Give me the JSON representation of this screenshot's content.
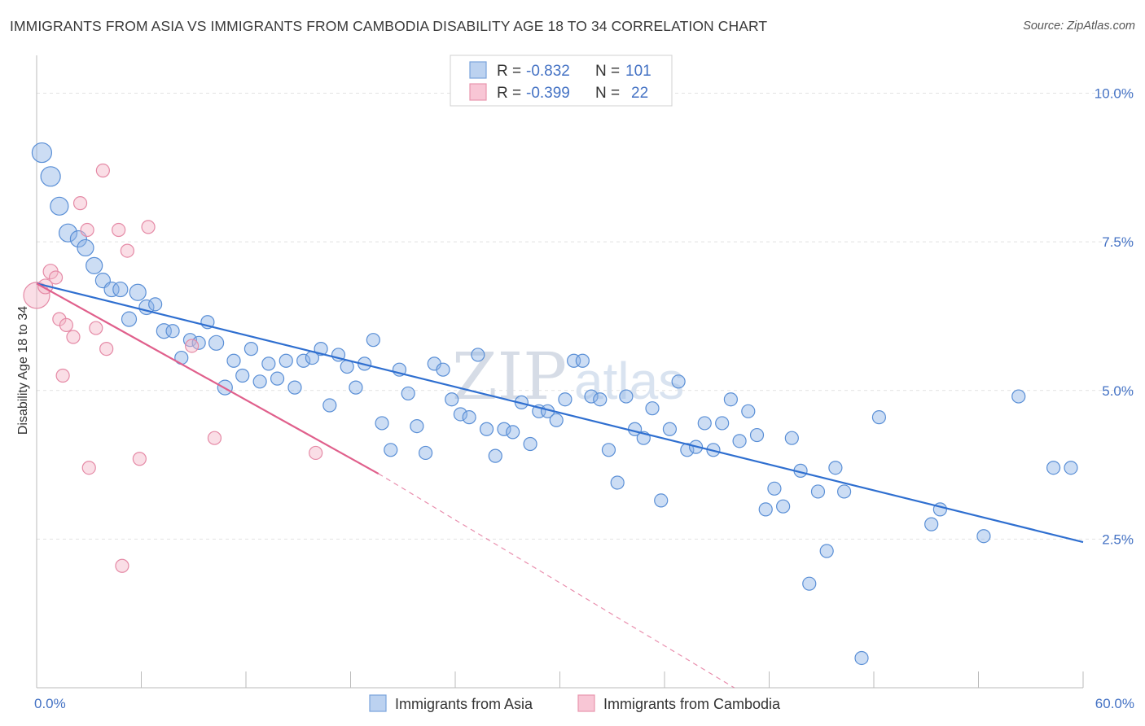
{
  "title": "IMMIGRANTS FROM ASIA VS IMMIGRANTS FROM CAMBODIA DISABILITY AGE 18 TO 34 CORRELATION CHART",
  "source": "Source: ZipAtlas.com",
  "watermark": {
    "zip": "ZIP",
    "atlas": "atlas"
  },
  "legend": {
    "rows": [
      {
        "r_label": "R =",
        "r_value": "-0.832",
        "n_label": "N =",
        "n_value": "101"
      },
      {
        "r_label": "R =",
        "r_value": "-0.399",
        "n_label": "N =",
        "n_value": "22"
      }
    ]
  },
  "bottom_legend": [
    "Immigrants from Asia",
    "Immigrants from Cambodia"
  ],
  "chart_data": {
    "type": "scatter",
    "title": "IMMIGRANTS FROM ASIA VS IMMIGRANTS FROM CAMBODIA DISABILITY AGE 18 TO 34 CORRELATION CHART",
    "xlabel": "",
    "ylabel": "Disability Age 18 to 34",
    "xlim": [
      0,
      60
    ],
    "ylim": [
      0,
      10.5
    ],
    "x_tick_labels": [
      {
        "value": 0,
        "label": "0.0%"
      },
      {
        "value": 60,
        "label": "60.0%"
      }
    ],
    "y_tick_labels": [
      {
        "value": 2.5,
        "label": "2.5%"
      },
      {
        "value": 5.0,
        "label": "5.0%"
      },
      {
        "value": 7.5,
        "label": "7.5%"
      },
      {
        "value": 10.0,
        "label": "10.0%"
      }
    ],
    "grid": true,
    "series": [
      {
        "name": "Immigrants from Asia",
        "color": "#8fb4e6",
        "stroke": "#5a8fd6",
        "trend": {
          "x": [
            0,
            60
          ],
          "y": [
            6.8,
            2.45
          ],
          "color": "#2f6fd0"
        },
        "points": [
          [
            0.3,
            9.0,
            12
          ],
          [
            0.8,
            8.6,
            12
          ],
          [
            1.3,
            8.1,
            11
          ],
          [
            1.8,
            7.65,
            11
          ],
          [
            2.4,
            7.55,
            10
          ],
          [
            2.8,
            7.4,
            10
          ],
          [
            3.3,
            7.1,
            10
          ],
          [
            3.8,
            6.85,
            9
          ],
          [
            4.3,
            6.7,
            9
          ],
          [
            4.8,
            6.7,
            9
          ],
          [
            5.8,
            6.65,
            10
          ],
          [
            5.3,
            6.2,
            9
          ],
          [
            6.3,
            6.4,
            9
          ],
          [
            6.8,
            6.45,
            8
          ],
          [
            7.3,
            6.0,
            9
          ],
          [
            7.8,
            6.0,
            8
          ],
          [
            8.3,
            5.55,
            8
          ],
          [
            8.8,
            5.85,
            8
          ],
          [
            9.3,
            5.8,
            8
          ],
          [
            9.8,
            6.15,
            8
          ],
          [
            10.3,
            5.8,
            9
          ],
          [
            10.8,
            5.05,
            9
          ],
          [
            11.3,
            5.5,
            8
          ],
          [
            11.8,
            5.25,
            8
          ],
          [
            12.3,
            5.7,
            8
          ],
          [
            12.8,
            5.15,
            8
          ],
          [
            13.3,
            5.45,
            8
          ],
          [
            13.8,
            5.2,
            8
          ],
          [
            14.3,
            5.5,
            8
          ],
          [
            14.8,
            5.05,
            8
          ],
          [
            15.3,
            5.5,
            8
          ],
          [
            15.8,
            5.55,
            8
          ],
          [
            16.3,
            5.7,
            8
          ],
          [
            16.8,
            4.75,
            8
          ],
          [
            17.3,
            5.6,
            8
          ],
          [
            17.8,
            5.4,
            8
          ],
          [
            18.3,
            5.05,
            8
          ],
          [
            18.8,
            5.45,
            8
          ],
          [
            19.3,
            5.85,
            8
          ],
          [
            19.8,
            4.45,
            8
          ],
          [
            20.3,
            4.0,
            8
          ],
          [
            20.8,
            5.35,
            8
          ],
          [
            21.3,
            4.95,
            8
          ],
          [
            21.8,
            4.4,
            8
          ],
          [
            22.3,
            3.95,
            8
          ],
          [
            22.8,
            5.45,
            8
          ],
          [
            23.3,
            5.35,
            8
          ],
          [
            23.8,
            4.85,
            8
          ],
          [
            24.3,
            4.6,
            8
          ],
          [
            24.8,
            4.55,
            8
          ],
          [
            25.3,
            5.6,
            8
          ],
          [
            25.8,
            4.35,
            8
          ],
          [
            26.3,
            3.9,
            8
          ],
          [
            26.8,
            4.35,
            8
          ],
          [
            27.3,
            4.3,
            8
          ],
          [
            27.8,
            4.8,
            8
          ],
          [
            28.3,
            4.1,
            8
          ],
          [
            28.8,
            4.65,
            8
          ],
          [
            29.3,
            4.65,
            8
          ],
          [
            29.8,
            4.5,
            8
          ],
          [
            30.3,
            4.85,
            8
          ],
          [
            30.8,
            5.5,
            8
          ],
          [
            31.3,
            5.5,
            8
          ],
          [
            31.8,
            4.9,
            8
          ],
          [
            32.3,
            4.85,
            8
          ],
          [
            32.8,
            4.0,
            8
          ],
          [
            33.3,
            3.45,
            8
          ],
          [
            33.8,
            4.9,
            8
          ],
          [
            34.3,
            4.35,
            8
          ],
          [
            34.8,
            4.2,
            8
          ],
          [
            35.3,
            4.7,
            8
          ],
          [
            35.8,
            3.15,
            8
          ],
          [
            36.3,
            4.35,
            8
          ],
          [
            36.8,
            5.15,
            8
          ],
          [
            37.3,
            4.0,
            8
          ],
          [
            37.8,
            4.05,
            8
          ],
          [
            38.3,
            4.45,
            8
          ],
          [
            38.8,
            4.0,
            8
          ],
          [
            39.3,
            4.45,
            8
          ],
          [
            39.8,
            4.85,
            8
          ],
          [
            40.3,
            4.15,
            8
          ],
          [
            40.8,
            4.65,
            8
          ],
          [
            41.3,
            4.25,
            8
          ],
          [
            41.8,
            3.0,
            8
          ],
          [
            42.3,
            3.35,
            8
          ],
          [
            42.8,
            3.05,
            8
          ],
          [
            43.3,
            4.2,
            8
          ],
          [
            43.8,
            3.65,
            8
          ],
          [
            44.3,
            1.75,
            8
          ],
          [
            44.8,
            3.3,
            8
          ],
          [
            45.3,
            2.3,
            8
          ],
          [
            45.8,
            3.7,
            8
          ],
          [
            46.3,
            3.3,
            8
          ],
          [
            47.3,
            0.5,
            8
          ],
          [
            48.3,
            4.55,
            8
          ],
          [
            51.3,
            2.75,
            8
          ],
          [
            51.8,
            3.0,
            8
          ],
          [
            54.3,
            2.55,
            8
          ],
          [
            56.3,
            4.9,
            8
          ],
          [
            58.3,
            3.7,
            8
          ],
          [
            59.3,
            3.7,
            8
          ]
        ]
      },
      {
        "name": "Immigrants from Cambodia",
        "color": "#f5b5c8",
        "stroke": "#e58aa6",
        "trend": {
          "x": [
            0,
            19.6
          ],
          "y": [
            6.8,
            3.6
          ],
          "dashed_to": [
            40,
            0
          ],
          "color": "#e0608c"
        },
        "points": [
          [
            0.0,
            6.6,
            16
          ],
          [
            0.5,
            6.75,
            9
          ],
          [
            0.8,
            7.0,
            9
          ],
          [
            1.1,
            6.9,
            8
          ],
          [
            1.3,
            6.2,
            8
          ],
          [
            1.7,
            6.1,
            8
          ],
          [
            2.1,
            5.9,
            8
          ],
          [
            1.5,
            5.25,
            8
          ],
          [
            2.5,
            8.15,
            8
          ],
          [
            2.9,
            7.7,
            8
          ],
          [
            3.4,
            6.05,
            8
          ],
          [
            3.8,
            8.7,
            8
          ],
          [
            4.0,
            5.7,
            8
          ],
          [
            4.7,
            7.7,
            8
          ],
          [
            5.2,
            7.35,
            8
          ],
          [
            5.9,
            3.85,
            8
          ],
          [
            6.4,
            7.75,
            8
          ],
          [
            3.0,
            3.7,
            8
          ],
          [
            4.9,
            2.05,
            8
          ],
          [
            8.9,
            5.75,
            8
          ],
          [
            10.2,
            4.2,
            8
          ],
          [
            16.0,
            3.95,
            8
          ]
        ]
      }
    ]
  }
}
